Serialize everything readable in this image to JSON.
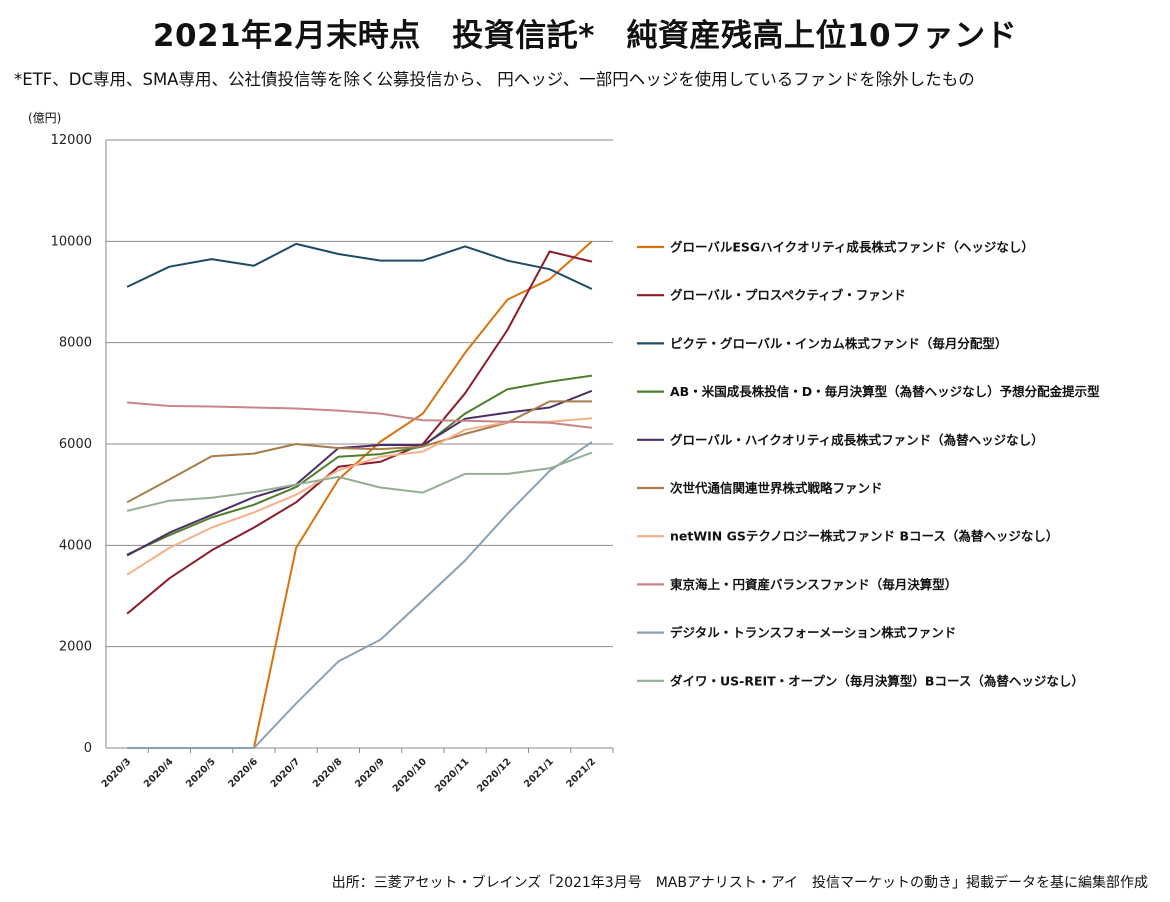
{
  "title": "2021年2月末時点　投資信託*　純資産残高上位10ファンド",
  "subtitle": "*ETF、DC専用、SMA専用、公社債投信等を除く公募投信から、 円ヘッジ、一部円ヘッジを使用しているファンドを除外したもの",
  "source": "出所：三菱アセット・ブレインズ「2021年3月号　MABアナリスト・アイ　投信マーケットの動き」掲載データを基に編集部作成",
  "chart_data": {
    "type": "line",
    "ylabel": "(億円)",
    "ylim": [
      0,
      12000
    ],
    "yticks": [
      0,
      2000,
      4000,
      6000,
      8000,
      10000,
      12000
    ],
    "grid": "horizontal",
    "legend_position": "right",
    "categories": [
      "2020/3",
      "2020/4",
      "2020/5",
      "2020/6",
      "2020/7",
      "2020/8",
      "2020/9",
      "2020/10",
      "2020/11",
      "2020/12",
      "2021/1",
      "2021/2"
    ],
    "series": [
      {
        "name": "グローバルESGハイクオリティ成長株式ファンド（ヘッジなし）",
        "color": "#D9720E",
        "values": [
          0,
          0,
          0,
          0,
          3950,
          5300,
          6050,
          6600,
          7800,
          8850,
          9250,
          10000
        ]
      },
      {
        "name": "グローバル・プロスペクティブ・ファンド",
        "color": "#8C1C2B",
        "values": [
          2650,
          3350,
          3900,
          4350,
          4850,
          5550,
          5650,
          6000,
          7000,
          8250,
          9800,
          9600
        ]
      },
      {
        "name": "ピクテ・グローバル・インカム株式ファンド（毎月分配型）",
        "color": "#1E4A66",
        "values": [
          9100,
          9500,
          9650,
          9520,
          9950,
          9750,
          9620,
          9620,
          9900,
          9620,
          9450,
          9060
        ]
      },
      {
        "name": "AB・米国成長株投信・D・毎月決算型（為替ヘッジなし）予想分配金提示型",
        "color": "#4E7F2C",
        "values": [
          3820,
          4200,
          4550,
          4800,
          5150,
          5750,
          5800,
          5950,
          6600,
          7080,
          7230,
          7350
        ]
      },
      {
        "name": "グローバル・ハイクオリティ成長株式ファンド（為替ヘッジなし）",
        "color": "#4C2E66",
        "values": [
          3800,
          4250,
          4600,
          4950,
          5200,
          5920,
          5980,
          5980,
          6500,
          6620,
          6720,
          7050
        ]
      },
      {
        "name": "次世代通信関連世界株式戦略ファンド",
        "color": "#A97B4B",
        "values": [
          4850,
          5300,
          5760,
          5810,
          6000,
          5920,
          5900,
          5950,
          6200,
          6420,
          6840,
          6840
        ]
      },
      {
        "name": "netWIN GSテクノロジー株式ファンド Bコース（為替ヘッジなし）",
        "color": "#F5B08A",
        "values": [
          3420,
          3950,
          4350,
          4650,
          5000,
          5480,
          5750,
          5850,
          6280,
          6430,
          6440,
          6510
        ]
      },
      {
        "name": "東京海上・円資産バランスファンド（毎月決算型）",
        "color": "#C98486",
        "values": [
          6820,
          6750,
          6740,
          6720,
          6700,
          6660,
          6600,
          6470,
          6460,
          6440,
          6420,
          6320
        ]
      },
      {
        "name": "デジタル・トランスフォーメーション株式ファンド",
        "color": "#8AA0B4",
        "values": [
          0,
          0,
          0,
          0,
          880,
          1710,
          2140,
          2920,
          3700,
          4620,
          5470,
          6040
        ]
      },
      {
        "name": "ダイワ・US-REIT・オープン（毎月決算型）Bコース（為替ヘッジなし）",
        "color": "#93B094",
        "values": [
          4680,
          4880,
          4940,
          5050,
          5200,
          5350,
          5140,
          5040,
          5410,
          5410,
          5520,
          5830
        ]
      }
    ]
  }
}
